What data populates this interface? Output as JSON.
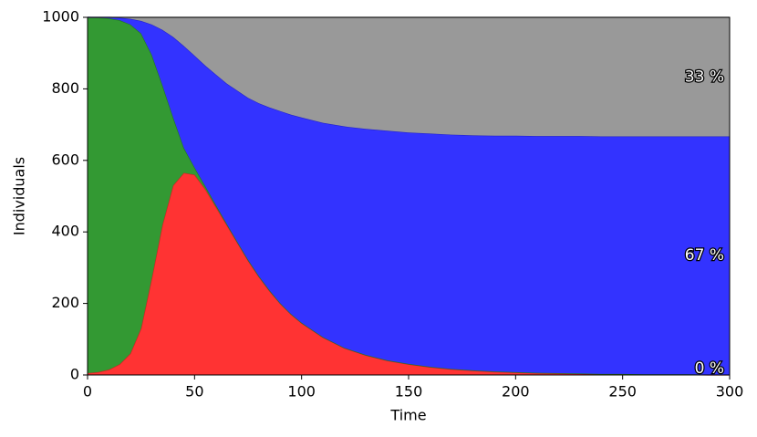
{
  "chart_data": {
    "type": "stackedarea",
    "xlabel": "Time",
    "ylabel": "Individuals",
    "x": [
      0,
      5,
      10,
      15,
      20,
      25,
      30,
      35,
      40,
      45,
      50,
      55,
      60,
      65,
      70,
      75,
      80,
      85,
      90,
      95,
      100,
      110,
      120,
      130,
      140,
      150,
      160,
      170,
      180,
      190,
      200,
      210,
      220,
      230,
      240,
      250,
      260,
      270,
      280,
      290,
      300
    ],
    "series": [
      {
        "color": "#ff3333",
        "edge": "#cc2222",
        "label": "0 %",
        "values": [
          5,
          8,
          15,
          30,
          60,
          130,
          270,
          420,
          530,
          565,
          560,
          520,
          470,
          420,
          370,
          320,
          275,
          235,
          200,
          170,
          145,
          105,
          75,
          55,
          40,
          30,
          22,
          16,
          12,
          9,
          7,
          5,
          4,
          3,
          2,
          2,
          1,
          1,
          1,
          0,
          0
        ]
      },
      {
        "color": "#339933",
        "edge": "#227722",
        "values": [
          995,
          991,
          982,
          962,
          920,
          825,
          625,
          390,
          190,
          70,
          20,
          8,
          5,
          3,
          2,
          2,
          2,
          2,
          1,
          1,
          1,
          1,
          1,
          1,
          1,
          1,
          1,
          1,
          1,
          1,
          1,
          1,
          1,
          1,
          1,
          1,
          1,
          1,
          1,
          1,
          1
        ]
      },
      {
        "color": "#3333ff",
        "edge": "#2222cc",
        "label": "67 %",
        "values": [
          0,
          1,
          3,
          7,
          16,
          35,
          85,
          155,
          225,
          285,
          313,
          337,
          365,
          392,
          423,
          453,
          483,
          511,
          537,
          557,
          574,
          599,
          619,
          632,
          642,
          647,
          652,
          655,
          657,
          659,
          661,
          662,
          663,
          664,
          664,
          664,
          665,
          665,
          665,
          666,
          666
        ]
      },
      {
        "color": "#999999",
        "edge": "#999999",
        "label": "33 %",
        "values": [
          0,
          0,
          0,
          1,
          4,
          10,
          20,
          35,
          55,
          80,
          107,
          135,
          160,
          185,
          205,
          225,
          240,
          252,
          262,
          272,
          280,
          295,
          305,
          312,
          317,
          322,
          325,
          328,
          330,
          331,
          331,
          332,
          332,
          332,
          333,
          333,
          333,
          333,
          333,
          333,
          333
        ]
      }
    ],
    "xlim": [
      0,
      300
    ],
    "xticks": [
      0,
      50,
      100,
      150,
      200,
      250,
      300
    ],
    "ylim": [
      0,
      1000
    ],
    "yticks": [
      0,
      200,
      400,
      600,
      800,
      1000
    ]
  }
}
